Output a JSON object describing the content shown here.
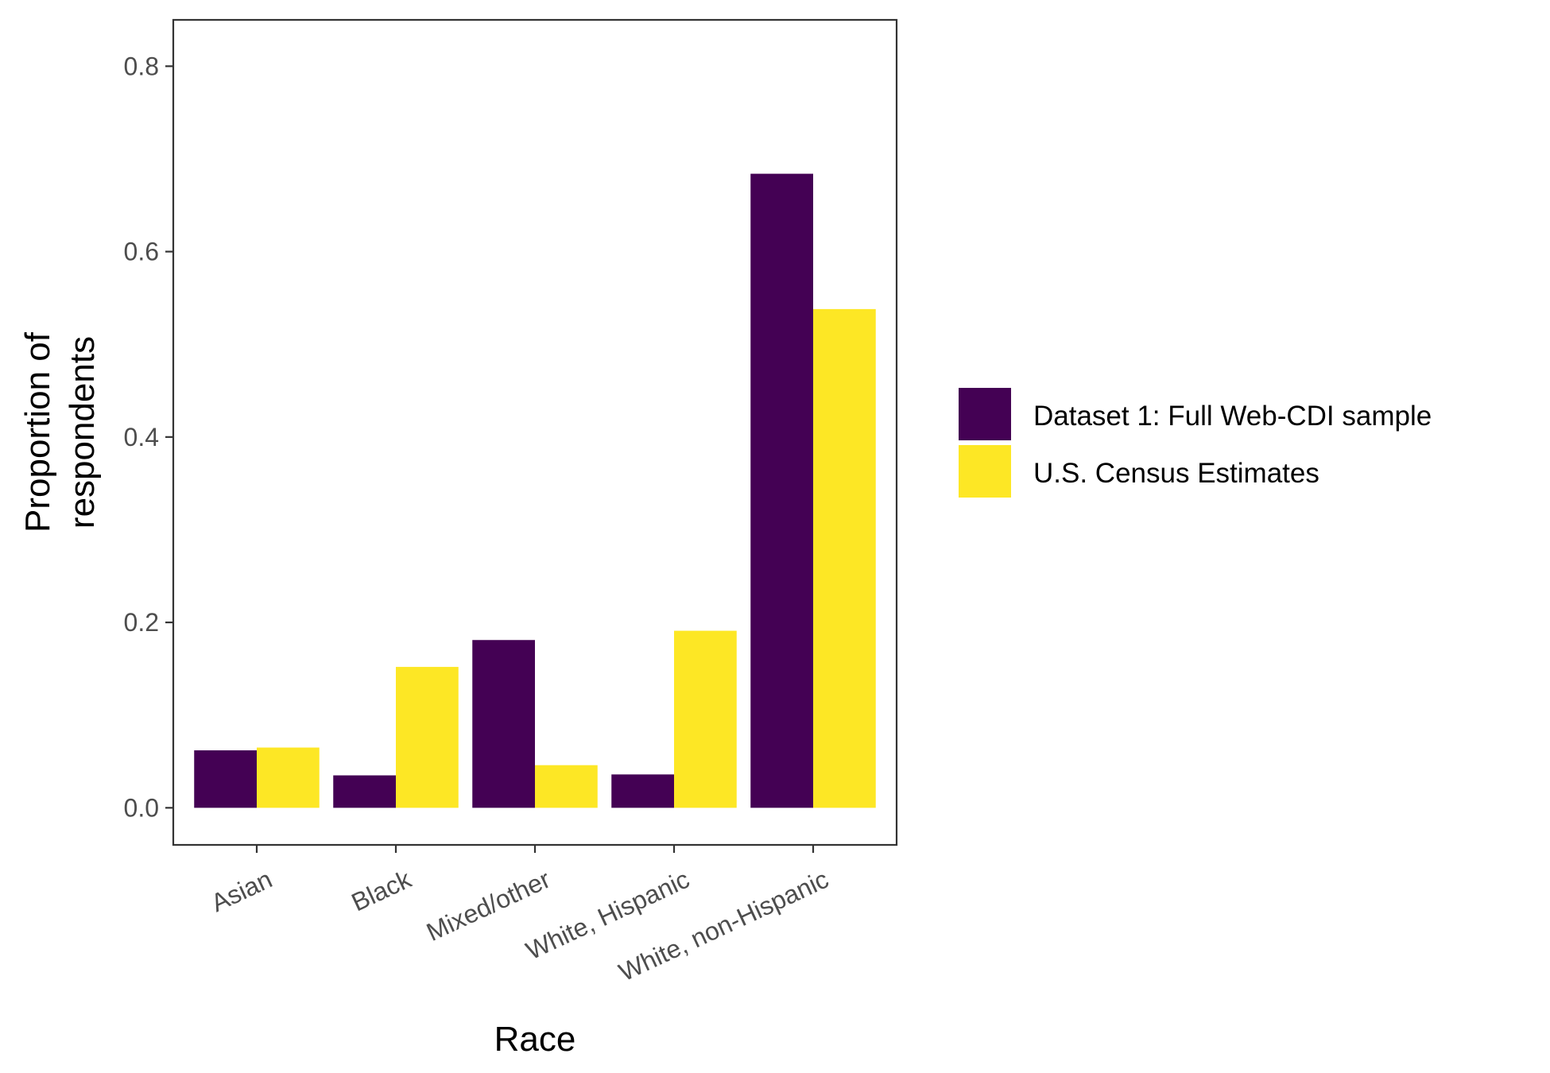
{
  "chart_data": {
    "type": "bar",
    "xlabel": "Race",
    "ylabel_lines": [
      "Proportion of",
      "respondents"
    ],
    "categories": [
      "Asian",
      "Black",
      "Mixed/other",
      "White, Hispanic",
      "White, non-Hispanic"
    ],
    "series": [
      {
        "name": "Dataset 1: Full Web-CDI sample",
        "color": "#440154",
        "values": [
          0.062,
          0.035,
          0.181,
          0.036,
          0.684
        ]
      },
      {
        "name": "U.S. Census Estimates",
        "color": "#FDE725",
        "values": [
          0.065,
          0.152,
          0.046,
          0.191,
          0.538
        ]
      }
    ],
    "ylim": [
      -0.04,
      0.85
    ],
    "yticks": [
      "0.0",
      "0.2",
      "0.4",
      "0.6",
      "0.8"
    ],
    "grid": false,
    "legend_position": "right"
  }
}
